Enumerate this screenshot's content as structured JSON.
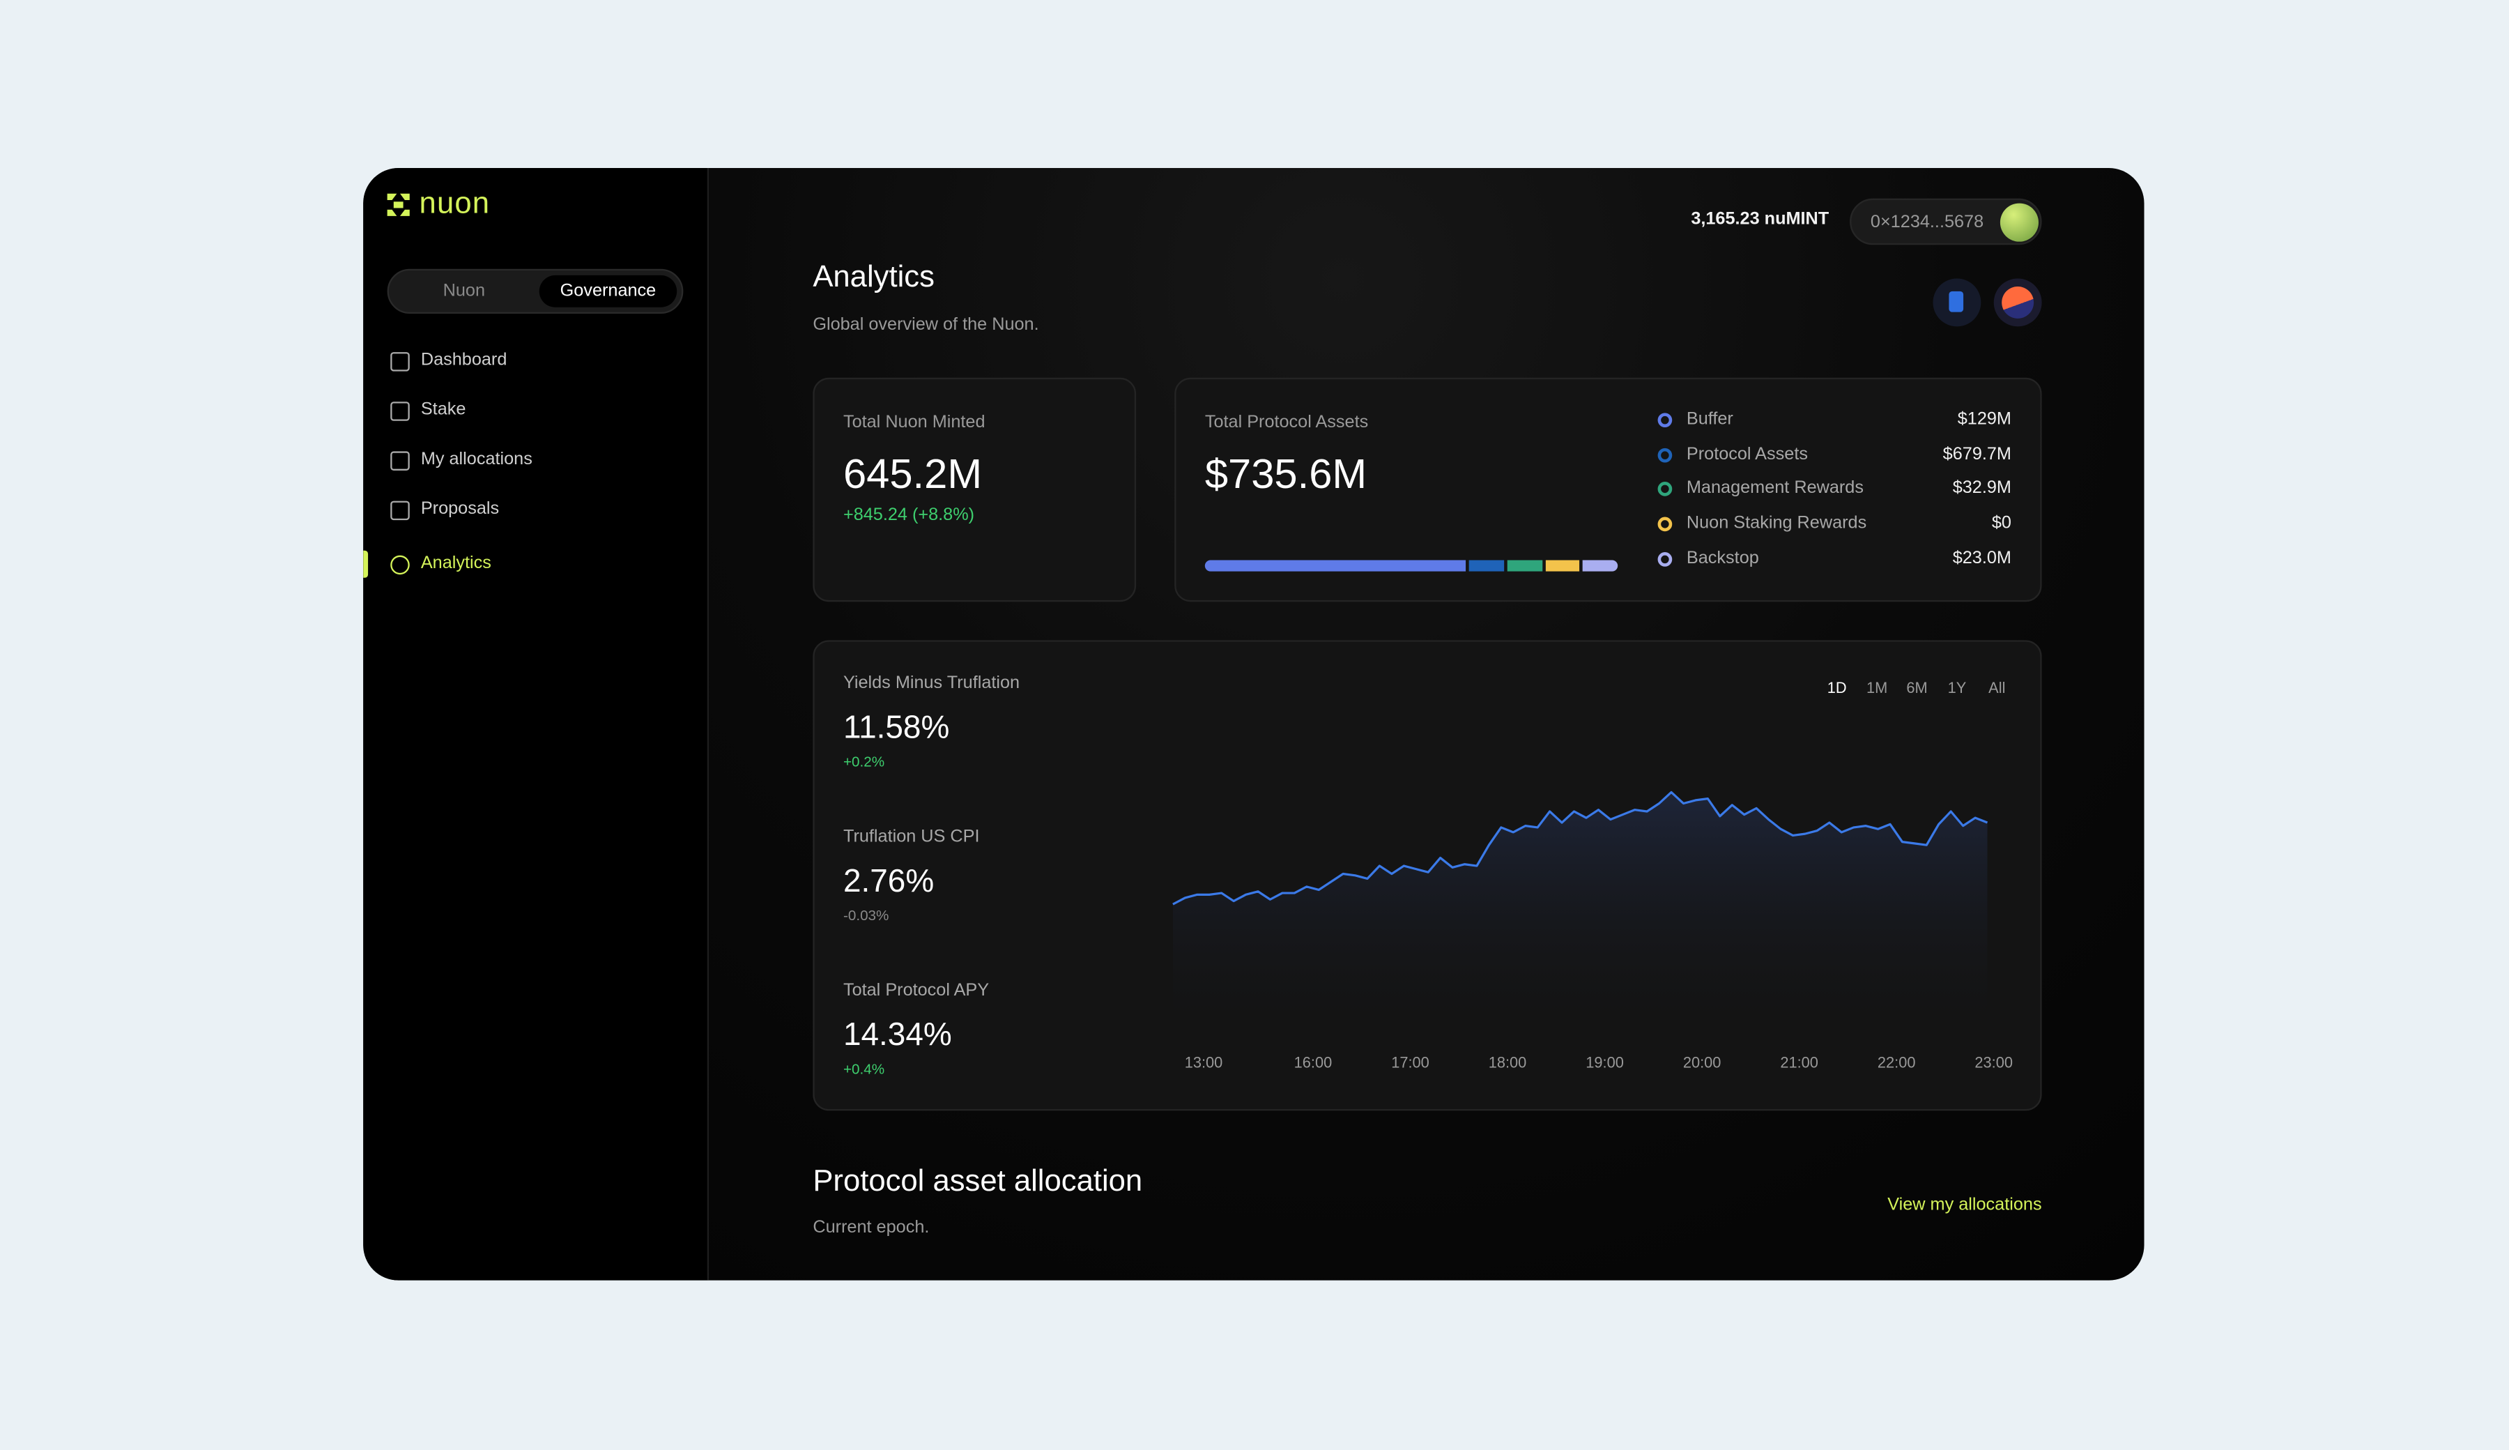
{
  "brand": "nuon",
  "sidebar": {
    "tabs": [
      "Nuon",
      "Governance"
    ],
    "active_tab": 1,
    "nav": [
      "Dashboard",
      "Stake",
      "My allocations",
      "Proposals",
      "Analytics"
    ],
    "active_nav": 4
  },
  "header": {
    "balance": "3,165.23 nuMINT",
    "wallet": "0×1234...5678"
  },
  "page": {
    "title": "Analytics",
    "subtitle": "Global overview of the Nuon."
  },
  "minted": {
    "label": "Total Nuon Minted",
    "value": "645.2M",
    "change": "+845.24 (+8.8%)"
  },
  "assets": {
    "label": "Total Protocol Assets",
    "value": "$735.6M",
    "breakdown": [
      {
        "name": "Buffer",
        "value": "$129M",
        "color": "#5f7be8"
      },
      {
        "name": "Protocol Assets",
        "value": "$679.7M",
        "color": "#1f63b8"
      },
      {
        "name": "Management Rewards",
        "value": "$32.9M",
        "color": "#2fa57c"
      },
      {
        "name": "Nuon Staking Rewards",
        "value": "$0",
        "color": "#f3c34b"
      },
      {
        "name": "Backstop",
        "value": "$23.0M",
        "color": "#a9aef0"
      }
    ]
  },
  "metrics": [
    {
      "label": "Yields Minus Truflation",
      "value": "11.58%",
      "change": "+0.2%"
    },
    {
      "label": "Truflation US CPI",
      "value": "2.76%",
      "change": "-0.03%"
    },
    {
      "label": "Total Protocol APY",
      "value": "14.34%",
      "change": "+0.4%"
    }
  ],
  "ranges": [
    "1D",
    "1M",
    "6M",
    "1Y",
    "All"
  ],
  "active_range": 0,
  "chart_data": {
    "type": "line",
    "color": "#3b7ae8",
    "categories": [
      null,
      null,
      "13:00",
      null,
      null,
      null,
      null,
      null,
      null,
      null,
      null,
      "16:00",
      null,
      null,
      null,
      null,
      null,
      null,
      null,
      "17:00",
      null,
      null,
      null,
      null,
      null,
      null,
      null,
      "18:00",
      null,
      null,
      null,
      null,
      null,
      null,
      null,
      "19:00",
      null,
      null,
      null,
      null,
      null,
      null,
      null,
      "20:00",
      null,
      null,
      null,
      null,
      null,
      null,
      null,
      "21:00",
      null,
      null,
      null,
      null,
      null,
      null,
      null,
      "22:00",
      null,
      null,
      null,
      null,
      null,
      null,
      null,
      "23:00"
    ],
    "values": [
      85,
      89,
      91,
      91,
      92,
      87,
      91,
      93,
      88,
      92,
      92,
      96,
      94,
      99,
      104,
      103,
      101,
      109,
      104,
      109,
      107,
      105,
      114,
      108,
      110,
      109,
      122,
      133,
      130,
      134,
      133,
      143,
      136,
      143,
      139,
      144,
      138,
      141,
      144,
      143,
      148,
      155,
      148,
      150,
      151,
      140,
      147,
      141,
      145,
      138,
      132,
      128,
      129,
      131,
      136,
      130,
      133,
      134,
      132,
      135,
      124,
      123,
      122,
      135,
      143,
      134,
      139,
      136
    ],
    "ylim": [
      0,
      170
    ]
  },
  "allocation": {
    "title": "Protocol asset allocation",
    "subtitle": "Current epoch.",
    "link": "View my allocations"
  }
}
